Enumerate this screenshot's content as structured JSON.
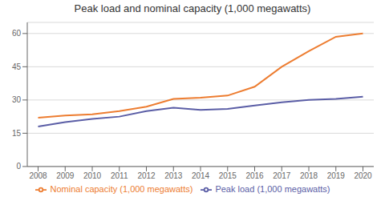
{
  "chart_data": {
    "type": "line",
    "title": "Peak load and nominal capacity (1,000 megawatts)",
    "x": [
      2008,
      2009,
      2010,
      2011,
      2012,
      2013,
      2014,
      2015,
      2016,
      2017,
      2018,
      2019,
      2020
    ],
    "series": [
      {
        "name": "Peak load (1,000 megawatts)",
        "color": "#5B5EA6",
        "values": [
          18,
          20,
          21.5,
          22.5,
          25,
          26.5,
          25.5,
          26,
          27.5,
          29,
          30,
          30.5,
          31.5
        ]
      },
      {
        "name": "Nominal capacity (1,000 megawatts)",
        "color": "#ED7D31",
        "values": [
          22,
          23,
          23.5,
          25,
          27,
          30.5,
          31,
          32,
          36,
          45,
          52,
          58.5,
          60
        ]
      }
    ],
    "xlim": [
      2007.6,
      2020.4
    ],
    "xticks": [
      2008,
      2009,
      2010,
      2011,
      2012,
      2013,
      2014,
      2015,
      2016,
      2017,
      2018,
      2019,
      2020
    ],
    "ylim": [
      0,
      65
    ],
    "yticks": [
      0,
      15,
      30,
      45,
      60
    ],
    "grid": true,
    "legend": "bottom"
  }
}
